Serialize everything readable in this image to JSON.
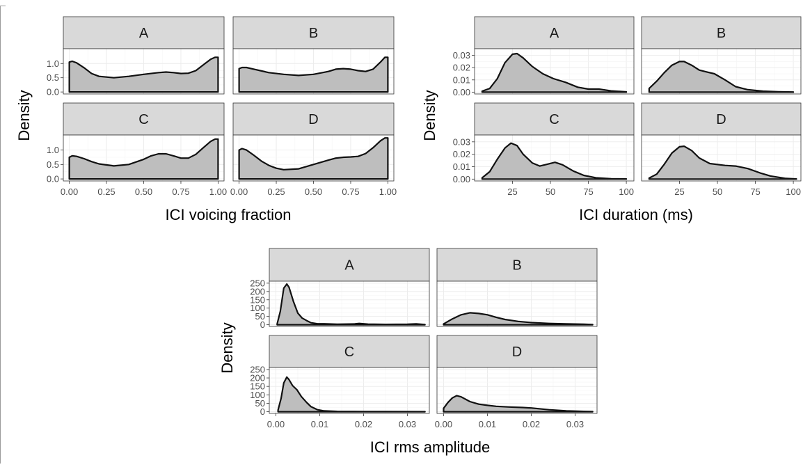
{
  "chart_data": [
    {
      "type": "area",
      "title": "",
      "xlabel": "ICI voicing fraction",
      "ylabel": "Density",
      "xlim": [
        0,
        1
      ],
      "ylim": [
        0,
        1.5
      ],
      "xticks": [
        "0.00",
        "0.25",
        "0.50",
        "0.75",
        "1.00"
      ],
      "yticks": [
        "0.0",
        "0.5",
        "1.0"
      ],
      "grid": true,
      "legend": "none",
      "fill_color": "#bebebe",
      "strip_color": "#d9d9d9",
      "panels": [
        {
          "label": "A",
          "x": [
            0.0,
            0.02,
            0.05,
            0.1,
            0.15,
            0.2,
            0.3,
            0.4,
            0.5,
            0.6,
            0.65,
            0.7,
            0.75,
            0.8,
            0.85,
            0.9,
            0.95,
            0.98,
            1.0
          ],
          "y": [
            1.05,
            1.08,
            1.02,
            0.85,
            0.65,
            0.55,
            0.5,
            0.55,
            0.62,
            0.68,
            0.7,
            0.68,
            0.65,
            0.66,
            0.75,
            0.95,
            1.15,
            1.22,
            1.22
          ]
        },
        {
          "label": "B",
          "x": [
            0.0,
            0.02,
            0.05,
            0.1,
            0.2,
            0.3,
            0.4,
            0.5,
            0.6,
            0.65,
            0.7,
            0.75,
            0.8,
            0.85,
            0.9,
            0.95,
            0.98,
            1.0
          ],
          "y": [
            0.82,
            0.86,
            0.86,
            0.8,
            0.68,
            0.62,
            0.58,
            0.62,
            0.72,
            0.8,
            0.82,
            0.8,
            0.75,
            0.72,
            0.8,
            1.05,
            1.22,
            1.22
          ]
        },
        {
          "label": "C",
          "x": [
            0.0,
            0.02,
            0.05,
            0.1,
            0.15,
            0.2,
            0.3,
            0.4,
            0.5,
            0.55,
            0.6,
            0.65,
            0.7,
            0.75,
            0.8,
            0.85,
            0.9,
            0.95,
            0.98,
            1.0
          ],
          "y": [
            0.75,
            0.8,
            0.78,
            0.7,
            0.6,
            0.52,
            0.45,
            0.5,
            0.68,
            0.8,
            0.87,
            0.87,
            0.8,
            0.72,
            0.72,
            0.85,
            1.08,
            1.3,
            1.38,
            1.38
          ]
        },
        {
          "label": "D",
          "x": [
            0.0,
            0.02,
            0.05,
            0.1,
            0.15,
            0.2,
            0.25,
            0.3,
            0.4,
            0.5,
            0.6,
            0.65,
            0.7,
            0.75,
            0.8,
            0.85,
            0.9,
            0.95,
            0.98,
            1.0
          ],
          "y": [
            1.0,
            1.05,
            1.0,
            0.82,
            0.62,
            0.47,
            0.37,
            0.32,
            0.35,
            0.5,
            0.65,
            0.72,
            0.75,
            0.76,
            0.78,
            0.88,
            1.08,
            1.32,
            1.42,
            1.42
          ]
        }
      ]
    },
    {
      "type": "area",
      "title": "",
      "xlabel": "ICI duration (ms)",
      "ylabel": "Density",
      "xlim": [
        0,
        105
      ],
      "ylim": [
        0,
        0.035
      ],
      "xticks": [
        "25",
        "50",
        "75",
        "100"
      ],
      "yticks": [
        "0.00",
        "0.01",
        "0.02",
        "0.03"
      ],
      "grid": true,
      "legend": "none",
      "fill_color": "#bebebe",
      "strip_color": "#d9d9d9",
      "panels": [
        {
          "label": "A",
          "x": [
            5,
            10,
            15,
            20,
            25,
            28,
            32,
            38,
            45,
            52,
            60,
            68,
            75,
            82,
            90,
            100
          ],
          "y": [
            0.0008,
            0.003,
            0.011,
            0.024,
            0.031,
            0.0315,
            0.028,
            0.021,
            0.015,
            0.011,
            0.008,
            0.004,
            0.0025,
            0.0025,
            0.001,
            0.0002
          ]
        },
        {
          "label": "B",
          "x": [
            5,
            10,
            15,
            20,
            25,
            28,
            33,
            38,
            43,
            48,
            55,
            62,
            70,
            80,
            90,
            100
          ],
          "y": [
            0.003,
            0.009,
            0.016,
            0.022,
            0.025,
            0.025,
            0.022,
            0.018,
            0.0165,
            0.015,
            0.01,
            0.0045,
            0.002,
            0.0008,
            0.0003,
            0.0001
          ]
        },
        {
          "label": "C",
          "x": [
            5,
            10,
            15,
            20,
            24,
            28,
            32,
            38,
            43,
            48,
            53,
            58,
            65,
            72,
            80,
            90,
            100
          ],
          "y": [
            0.001,
            0.006,
            0.016,
            0.025,
            0.029,
            0.027,
            0.02,
            0.013,
            0.0105,
            0.012,
            0.0135,
            0.0115,
            0.0065,
            0.003,
            0.001,
            0.0003,
            0.0001
          ]
        },
        {
          "label": "D",
          "x": [
            5,
            10,
            15,
            20,
            25,
            28,
            33,
            38,
            45,
            55,
            62,
            70,
            78,
            85,
            95,
            102
          ],
          "y": [
            0.0008,
            0.004,
            0.012,
            0.021,
            0.026,
            0.0265,
            0.023,
            0.017,
            0.0125,
            0.011,
            0.0105,
            0.0085,
            0.005,
            0.0025,
            0.0005,
            0.0001
          ]
        }
      ]
    },
    {
      "type": "area",
      "title": "",
      "xlabel": "ICI rms amplitude",
      "ylabel": "Density",
      "xlim": [
        0,
        0.035
      ],
      "ylim": [
        0,
        260
      ],
      "xticks": [
        "0.00",
        "0.01",
        "0.02",
        "0.03"
      ],
      "yticks": [
        "0",
        "50",
        "100",
        "150",
        "200",
        "250"
      ],
      "grid": true,
      "legend": "none",
      "fill_color": "#bebebe",
      "strip_color": "#d9d9d9",
      "panels": [
        {
          "label": "A",
          "x": [
            0.0003,
            0.001,
            0.0018,
            0.0025,
            0.003,
            0.004,
            0.005,
            0.006,
            0.007,
            0.008,
            0.0095,
            0.011,
            0.014,
            0.018,
            0.019,
            0.021,
            0.025,
            0.03,
            0.032,
            0.034
          ],
          "y": [
            5,
            80,
            220,
            245,
            225,
            140,
            70,
            40,
            25,
            12,
            6,
            6,
            3,
            5,
            8,
            4,
            2,
            3,
            5,
            1
          ]
        },
        {
          "label": "B",
          "x": [
            0.0,
            0.002,
            0.004,
            0.006,
            0.008,
            0.01,
            0.012,
            0.014,
            0.017,
            0.02,
            0.024,
            0.028,
            0.032,
            0.034
          ],
          "y": [
            5,
            35,
            60,
            72,
            68,
            60,
            45,
            32,
            20,
            13,
            8,
            5,
            3,
            1
          ]
        },
        {
          "label": "C",
          "x": [
            0.0005,
            0.0012,
            0.0018,
            0.0025,
            0.003,
            0.0038,
            0.0048,
            0.0058,
            0.007,
            0.008,
            0.0095,
            0.011,
            0.014,
            0.02,
            0.025,
            0.034
          ],
          "y": [
            10,
            80,
            170,
            205,
            190,
            155,
            130,
            90,
            55,
            30,
            12,
            5,
            2,
            1,
            1,
            0.5
          ]
        },
        {
          "label": "D",
          "x": [
            0.0,
            0.001,
            0.002,
            0.003,
            0.004,
            0.006,
            0.008,
            0.01,
            0.012,
            0.015,
            0.018,
            0.02,
            0.024,
            0.028,
            0.032,
            0.034
          ],
          "y": [
            20,
            55,
            82,
            95,
            88,
            60,
            45,
            38,
            32,
            28,
            25,
            22,
            12,
            5,
            2,
            1
          ]
        }
      ]
    }
  ]
}
